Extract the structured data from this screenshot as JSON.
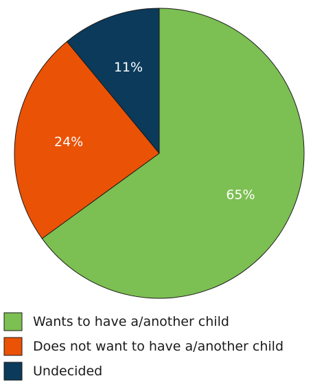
{
  "chart_data": {
    "type": "pie",
    "title": "",
    "start_angle_deg": 0,
    "direction": "clockwise",
    "series": [
      {
        "slices": [
          {
            "label": "Wants to have a/another child",
            "value": 65,
            "display": "65%",
            "color": "#7cbf52"
          },
          {
            "label": "Does not want to have a/another child",
            "value": 24,
            "display": "24%",
            "color": "#ea5206"
          },
          {
            "label": "Undecided",
            "value": 11,
            "display": "11%",
            "color": "#0b3a5b"
          }
        ]
      }
    ],
    "legend_position": "bottom-left"
  }
}
